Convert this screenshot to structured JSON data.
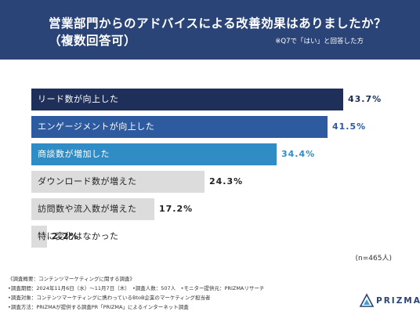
{
  "header": {
    "title_line1": "営業部門からのアドバイスによる改善効果はありましたか？",
    "title_line2": "（複数回答可）",
    "note": "※Q7で「はい」と回答した方"
  },
  "chart_data": {
    "type": "bar",
    "orientation": "horizontal",
    "title": "営業部門からのアドバイスによる改善効果はありましたか？（複数回答可）",
    "categories": [
      "リード数が向上した",
      "エンゲージメントが向上した",
      "商談数が増加した",
      "ダウンロード数が増えた",
      "訪問数や流入数が増えた",
      "特に変化はなかった"
    ],
    "values": [
      43.7,
      41.5,
      34.4,
      24.3,
      17.2,
      2.2
    ],
    "value_labels": [
      "43.7%",
      "41.5%",
      "34.4%",
      "24.3%",
      "17.2%",
      "2.2%"
    ],
    "bar_colors": [
      "#1e2f5a",
      "#2e5aa0",
      "#2f8cc4",
      "#dcdcdc",
      "#dcdcdc",
      "#dcdcdc"
    ],
    "label_colors": [
      "#ffffff",
      "#ffffff",
      "#ffffff",
      "#222222",
      "#222222",
      "#222222"
    ],
    "value_colors": [
      "#1e2f5a",
      "#2e5aa0",
      "#2f8cc4",
      "#222222",
      "#222222",
      "#222222"
    ],
    "xlim": [
      0,
      50
    ],
    "sample_size": "(n=465人)"
  },
  "footer": {
    "lines": [
      "《調査概要：コンテンツマーケティングに関する調査》",
      "•調査期間：2024年11月6日（水）〜11月7日（木）　•調査人数：507人　•モニター提供元：PRIZMAリサーチ",
      "•調査対象：コンテンツマーケティングに携わっているBtoB企業のマーケティング担当者",
      "•調査方法：PRIZMAが提供する調査PR「PRIZMA」によるインターネット調査"
    ]
  },
  "logo": {
    "text": "PRIZMA",
    "color": "#2a4478"
  }
}
